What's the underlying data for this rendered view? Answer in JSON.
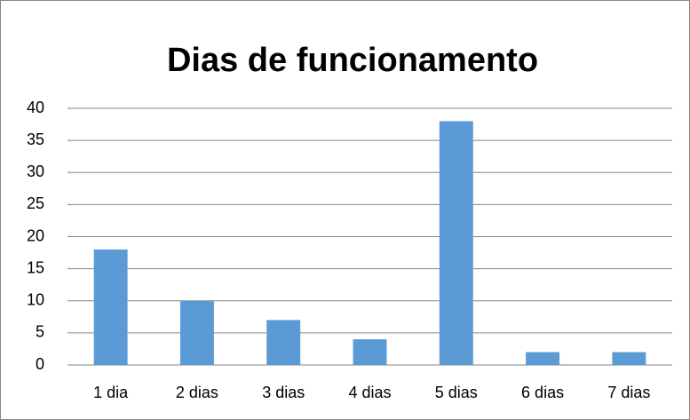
{
  "chart_data": {
    "type": "bar",
    "title": "Dias de funcionamento",
    "categories": [
      "1 dia",
      "2 dias",
      "3 dias",
      "4 dias",
      "5 dias",
      "6 dias",
      "7 dias"
    ],
    "values": [
      18,
      10,
      7,
      4,
      38,
      2,
      2
    ],
    "color": "#5b9bd5",
    "ylim": [
      0,
      40
    ],
    "yticks": [
      0,
      5,
      10,
      15,
      20,
      25,
      30,
      35,
      40
    ],
    "grid": true
  }
}
